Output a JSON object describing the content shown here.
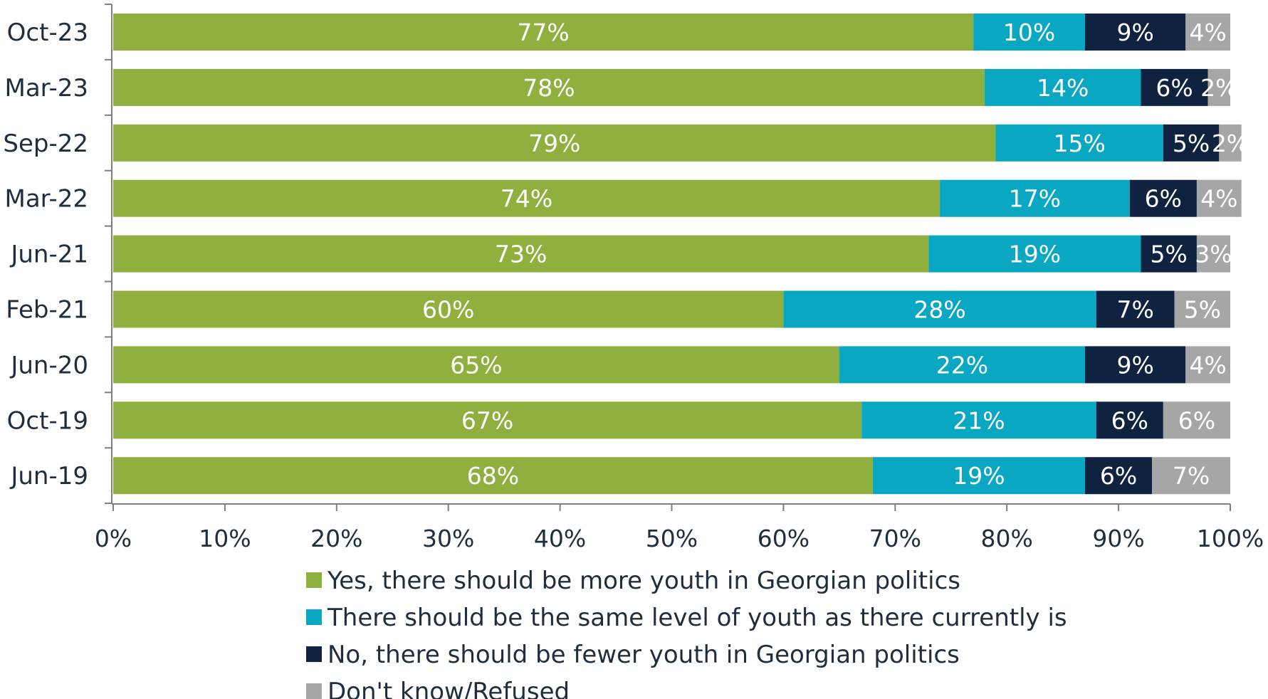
{
  "chart_data": {
    "type": "bar",
    "orientation": "horizontal",
    "stacked": true,
    "title": "",
    "xlabel": "",
    "ylabel": "",
    "xlim": [
      0,
      100
    ],
    "categories": [
      "Oct-23",
      "Mar-23",
      "Sep-22",
      "Mar-22",
      "Jun-21",
      "Feb-21",
      "Jun-20",
      "Oct-19",
      "Jun-19"
    ],
    "x_ticks": [
      "0%",
      "10%",
      "20%",
      "30%",
      "40%",
      "50%",
      "60%",
      "70%",
      "80%",
      "90%",
      "100%"
    ],
    "series": [
      {
        "name": "Yes, there should be more youth in Georgian politics",
        "color": "#8fb03e",
        "values": [
          77,
          78,
          79,
          74,
          73,
          60,
          65,
          67,
          68
        ]
      },
      {
        "name": "There should be the same level of youth as there currently is",
        "color": "#0aa7c3",
        "values": [
          10,
          14,
          15,
          17,
          19,
          28,
          22,
          21,
          19
        ]
      },
      {
        "name": "No, there should be fewer youth in Georgian politics",
        "color": "#0f2340",
        "values": [
          9,
          6,
          5,
          6,
          5,
          7,
          9,
          6,
          6
        ]
      },
      {
        "name": "Don't know/Refused",
        "color": "#a6a6a6",
        "values": [
          4,
          2,
          2,
          4,
          3,
          5,
          4,
          6,
          7
        ]
      }
    ],
    "legend_position": "bottom",
    "grid": false
  }
}
